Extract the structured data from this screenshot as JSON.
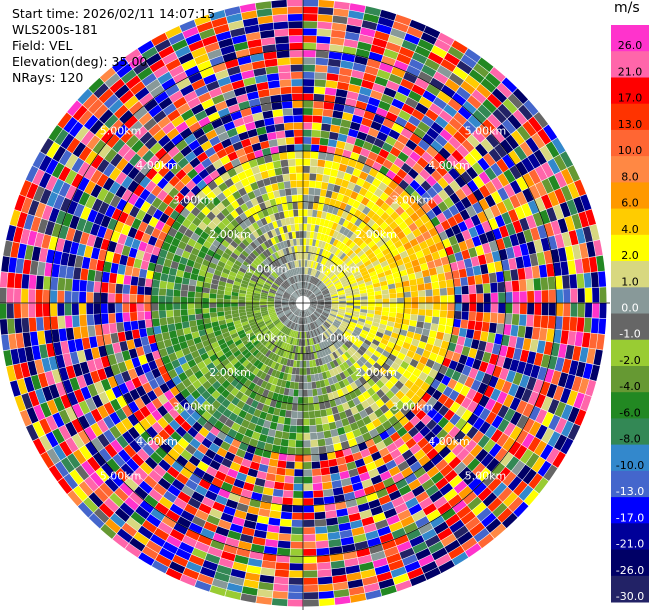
{
  "meta": {
    "start_time": "Start time: 2026/02/11 14:07:15",
    "instrument": "WLS200s-181",
    "field": "Field: VEL",
    "elevation": "Elevation(deg): 35.00",
    "nrays": "NRays: 120"
  },
  "colorbar": {
    "unit": "m/s",
    "levels": [
      "26.0",
      "21.0",
      "17.0",
      "13.0",
      "10.0",
      "8.0",
      "6.0",
      "4.0",
      "2.0",
      "1.0",
      "0.0",
      "-1.0",
      "-2.0",
      "-4.0",
      "-6.0",
      "-8.0",
      "-10.0",
      "-13.0",
      "-17.0",
      "-21.0",
      "-26.0",
      "-30.0"
    ],
    "colors": [
      "#ff33cc",
      "#ff66aa",
      "#ff0000",
      "#ff3300",
      "#ff6633",
      "#ff8844",
      "#ff9900",
      "#ffcc00",
      "#ffff00",
      "#d8d880",
      "#889999",
      "#666666",
      "#99cc33",
      "#669933",
      "#228822",
      "#338855",
      "#3388cc",
      "#4466cc",
      "#0000ff",
      "#000099",
      "#000066",
      "#222266"
    ]
  },
  "chart_data": {
    "type": "ppi-radar",
    "field": "VEL",
    "units": "m/s",
    "nrays": 120,
    "elevation_deg": 35.0,
    "range_rings_km": [
      1.0,
      2.0,
      3.0,
      4.0,
      5.0
    ],
    "range_ring_labels": [
      "1.00km",
      "2.00km",
      "3.00km",
      "4.00km",
      "5.00km"
    ],
    "max_range_km": 6.0,
    "value_range": [
      -30,
      30
    ]
  }
}
